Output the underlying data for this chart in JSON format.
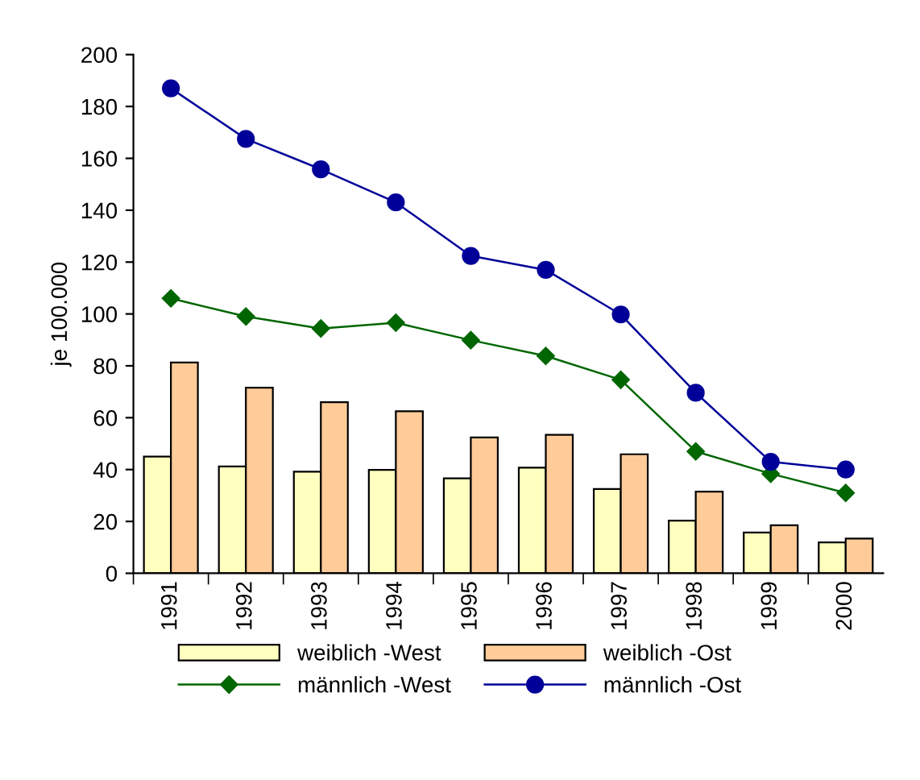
{
  "chart_data": {
    "type": "bar",
    "ylabel": "je 100.000",
    "categories": [
      "1991",
      "1992",
      "1993",
      "1994",
      "1995",
      "1996",
      "1997",
      "1998",
      "1999",
      "2000"
    ],
    "series": [
      {
        "name": "weiblich -West",
        "color": "#ffffc0",
        "values": [
          45,
          41.2,
          39.2,
          39.9,
          36.6,
          40.7,
          32.5,
          20.3,
          15.7,
          11.9
        ]
      },
      {
        "name": "weiblich -Ost",
        "color": "#ffcc99",
        "values": [
          81.3,
          71.6,
          66,
          62.5,
          52.4,
          53.4,
          45.9,
          31.5,
          18.5,
          13.4
        ]
      },
      {
        "name": "männlich -West",
        "type": "line",
        "color": "#006600",
        "marker": "diamond",
        "values": [
          106,
          99,
          94.4,
          96.6,
          89.9,
          83.8,
          74.6,
          47,
          38.4,
          31
        ]
      },
      {
        "name": "männlich -Ost",
        "type": "line",
        "color": "#000099",
        "marker": "circle",
        "values": [
          187,
          167.5,
          155.8,
          143,
          122.4,
          117,
          99.8,
          69.6,
          43,
          40
        ]
      }
    ],
    "ylim": [
      0,
      200
    ],
    "yticks": [
      0,
      20,
      40,
      60,
      80,
      100,
      120,
      140,
      160,
      180,
      200
    ],
    "legend": "bottom",
    "grid": false
  }
}
